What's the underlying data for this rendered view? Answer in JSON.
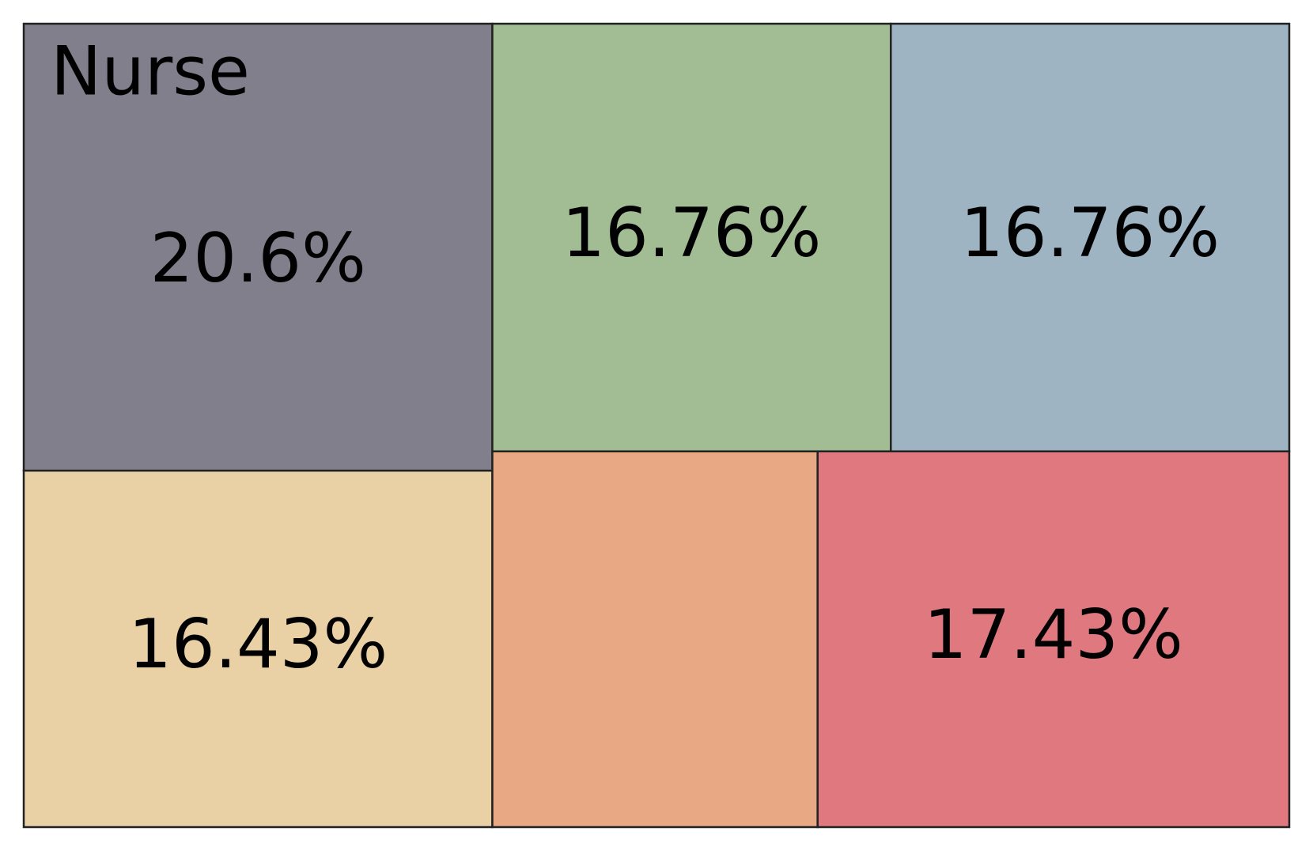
{
  "chart_data": {
    "type": "treemap",
    "categories": [
      "Nurse",
      null,
      null,
      null,
      null,
      null
    ],
    "values": [
      20.6,
      16.43,
      16.76,
      16.76,
      12.02,
      17.43
    ],
    "value_labels": [
      "20.6%",
      "16.43%",
      "16.76%",
      "16.76%",
      null,
      "17.43%"
    ],
    "colors": [
      "#817f8c",
      "#e9d1a5",
      "#a2bc94",
      "#9fb4c3",
      "#e9a884",
      "#e07880"
    ]
  }
}
